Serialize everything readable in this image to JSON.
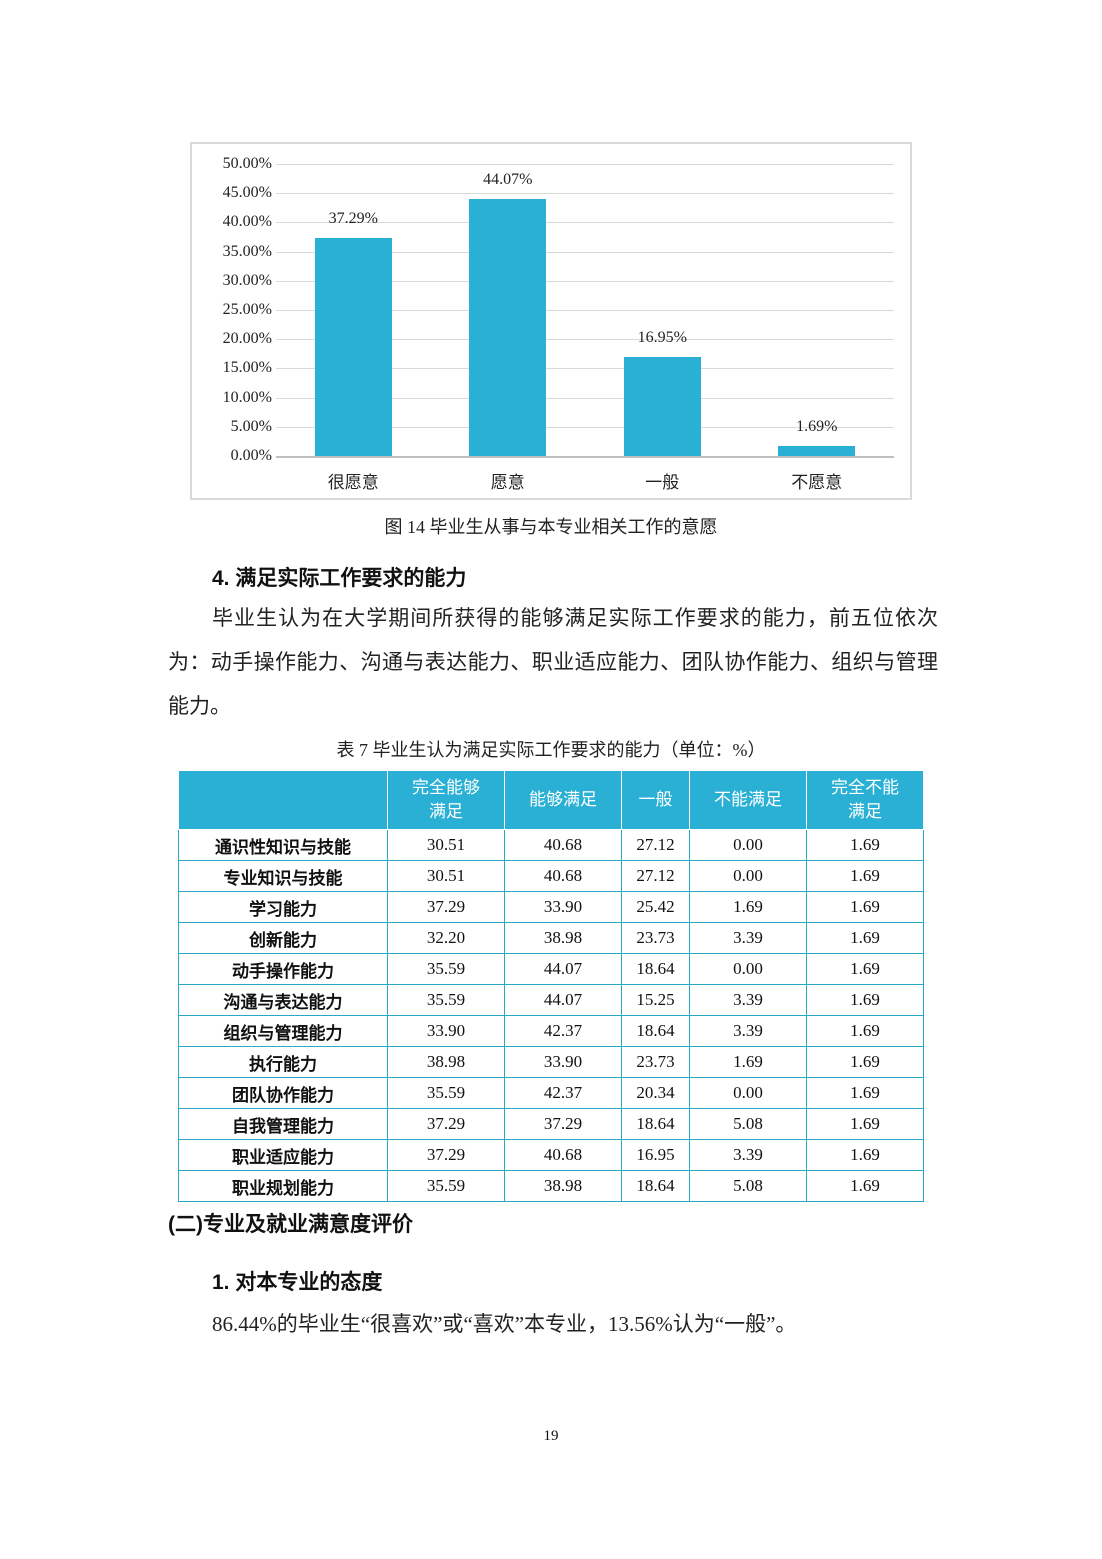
{
  "figure": {
    "caption": "图 14 毕业生从事与本专业相关工作的意愿",
    "y_ticks": [
      "50.00%",
      "45.00%",
      "40.00%",
      "35.00%",
      "30.00%",
      "25.00%",
      "20.00%",
      "15.00%",
      "10.00%",
      "5.00%",
      "0.00%"
    ],
    "bars": [
      {
        "category": "很愿意",
        "value": 37.29,
        "label": "37.29%"
      },
      {
        "category": "愿意",
        "value": 44.07,
        "label": "44.07%"
      },
      {
        "category": "一般",
        "value": 16.95,
        "label": "16.95%"
      },
      {
        "category": "不愿意",
        "value": 1.69,
        "label": "1.69%"
      }
    ],
    "bar_color": "#29b0d4"
  },
  "chart_data": {
    "type": "bar",
    "title": "图 14 毕业生从事与本专业相关工作的意愿",
    "categories": [
      "很愿意",
      "愿意",
      "一般",
      "不愿意"
    ],
    "values": [
      37.29,
      44.07,
      16.95,
      1.69
    ],
    "xlabel": "",
    "ylabel": "",
    "ylim": [
      0,
      50
    ],
    "y_tick_step": 5,
    "y_format": "percent",
    "grid": true,
    "legend": null
  },
  "section4": {
    "heading": "4.  满足实际工作要求的能力",
    "paragraph": "毕业生认为在大学期间所获得的能够满足实际工作要求的能力，前五位依次为：动手操作能力、沟通与表达能力、职业适应能力、团队协作能力、组织与管理能力。"
  },
  "table": {
    "caption": "表 7 毕业生认为满足实际工作要求的能力（单位：%）",
    "headers": [
      "",
      "完全能够满足",
      "能够满足",
      "一般",
      "不能满足",
      "完全不能满足"
    ],
    "header_color": "#29b0d4",
    "rows": [
      [
        "通识性知识与技能",
        "30.51",
        "40.68",
        "27.12",
        "0.00",
        "1.69"
      ],
      [
        "专业知识与技能",
        "30.51",
        "40.68",
        "27.12",
        "0.00",
        "1.69"
      ],
      [
        "学习能力",
        "37.29",
        "33.90",
        "25.42",
        "1.69",
        "1.69"
      ],
      [
        "创新能力",
        "32.20",
        "38.98",
        "23.73",
        "3.39",
        "1.69"
      ],
      [
        "动手操作能力",
        "35.59",
        "44.07",
        "18.64",
        "0.00",
        "1.69"
      ],
      [
        "沟通与表达能力",
        "35.59",
        "44.07",
        "15.25",
        "3.39",
        "1.69"
      ],
      [
        "组织与管理能力",
        "33.90",
        "42.37",
        "18.64",
        "3.39",
        "1.69"
      ],
      [
        "执行能力",
        "38.98",
        "33.90",
        "23.73",
        "1.69",
        "1.69"
      ],
      [
        "团队协作能力",
        "35.59",
        "42.37",
        "20.34",
        "0.00",
        "1.69"
      ],
      [
        "自我管理能力",
        "37.29",
        "37.29",
        "18.64",
        "5.08",
        "1.69"
      ],
      [
        "职业适应能力",
        "37.29",
        "40.68",
        "16.95",
        "3.39",
        "1.69"
      ],
      [
        "职业规划能力",
        "35.59",
        "38.98",
        "18.64",
        "5.08",
        "1.69"
      ]
    ]
  },
  "section_two": {
    "heading": "(二)专业及就业满意度评价",
    "sub_heading": "1.  对本专业的态度",
    "paragraph": "86.44%的毕业生“很喜欢”或“喜欢”本专业，13.56%认为“一般”。"
  },
  "page_number": "19"
}
